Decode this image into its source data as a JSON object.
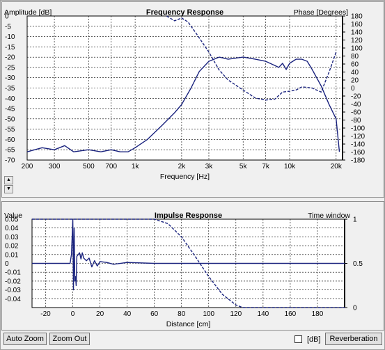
{
  "colors": {
    "trace": "#1a237e",
    "background": "#ffffff",
    "grid": "#000000"
  },
  "freq_chart": {
    "chart_data": {
      "type": "line",
      "title": "Frequency Response",
      "xlabel": "Frequency [Hz]",
      "ylabel_left": "Amplitude [dB]",
      "ylabel_right": "Phase [Degrees]",
      "x_scale": "log",
      "xlim": [
        200,
        22000
      ],
      "ylim": [
        -70,
        0
      ],
      "y2lim": [
        -180,
        180
      ],
      "x_ticks": [
        200,
        300,
        500,
        700,
        1000,
        2000,
        3000,
        5000,
        7000,
        10000,
        20000
      ],
      "x_tick_labels": [
        "200",
        "300",
        "500",
        "700",
        "1k",
        "2k",
        "3k",
        "5k",
        "7k",
        "10k",
        "20k"
      ],
      "y_ticks": [
        0,
        -5,
        -10,
        -15,
        -20,
        -25,
        -30,
        -35,
        -40,
        -45,
        -50,
        -55,
        -60,
        -65,
        -70
      ],
      "y_tick_labels": [
        "0",
        "-5",
        "-10",
        "-15",
        "-20",
        "-25",
        "-30",
        "-35",
        "-40",
        "-45",
        "-50",
        "-55",
        "-60",
        "-65",
        "-70"
      ],
      "y2_ticks": [
        180,
        160,
        140,
        120,
        100,
        80,
        60,
        40,
        20,
        0,
        -20,
        -40,
        -60,
        -80,
        -100,
        -120,
        -140,
        -160,
        -180
      ],
      "y2_tick_labels": [
        "180",
        "160",
        "140",
        "120",
        "100",
        "80",
        "60",
        "40",
        "20",
        "0",
        "-20",
        "-40",
        "-60",
        "-80",
        "-100",
        "-120",
        "-140",
        "-160",
        "-180"
      ],
      "grid": true,
      "series": [
        {
          "kind": "amplitude",
          "style": "solid",
          "axis": "left",
          "x": [
            200,
            250,
            300,
            350,
            400,
            500,
            600,
            700,
            800,
            900,
            1000,
            1200,
            1500,
            1800,
            2000,
            2300,
            2600,
            3000,
            3500,
            4000,
            5000,
            6000,
            7000,
            8000,
            8500,
            9000,
            9500,
            10000,
            11000,
            12000,
            13000,
            14000,
            16000,
            18000,
            20000,
            21000
          ],
          "y": [
            -66,
            -64,
            -65,
            -63,
            -66,
            -65,
            -66,
            -65,
            -66,
            -66,
            -64,
            -60,
            -53,
            -47,
            -43,
            -35,
            -27,
            -22,
            -20,
            -21,
            -20,
            -21,
            -22,
            -24,
            -25,
            -23,
            -26,
            -23,
            -21,
            -21,
            -22,
            -26,
            -34,
            -43,
            -50,
            -66
          ]
        },
        {
          "kind": "phase",
          "style": "dashed",
          "axis": "right",
          "x": [
            1600,
            1800,
            2000,
            2200,
            2500,
            3000,
            3500,
            4000,
            5000,
            6000,
            7000,
            8000,
            9000,
            10000,
            11000,
            12000,
            14000,
            16000,
            18000,
            20000
          ],
          "y": [
            180,
            168,
            175,
            165,
            135,
            90,
            45,
            20,
            -5,
            -25,
            -30,
            -28,
            -10,
            -8,
            -5,
            3,
            0,
            -10,
            40,
            90
          ]
        }
      ]
    }
  },
  "imp_chart": {
    "chart_data": {
      "type": "line",
      "title": "Impulse Response",
      "xlabel": "Distance [cm]",
      "ylabel_left": "Value",
      "ylabel_right": "Time window",
      "xlim": [
        -30,
        200
      ],
      "ylim": [
        -0.05,
        0.05
      ],
      "y2lim": [
        0,
        1
      ],
      "x_ticks": [
        -20,
        0,
        20,
        40,
        60,
        80,
        100,
        120,
        140,
        160,
        180
      ],
      "x_tick_labels": [
        "-20",
        "0",
        "20",
        "40",
        "60",
        "80",
        "100",
        "120",
        "140",
        "160",
        "180"
      ],
      "y_ticks": [
        0.05,
        0.04,
        0.03,
        0.02,
        0.01,
        0,
        -0.01,
        -0.02,
        -0.03,
        -0.04
      ],
      "y_tick_labels": [
        "0.05",
        "0.04",
        "0.03",
        "0.02",
        "0.01",
        "0",
        "-0.01",
        "-0.02",
        "-0.03",
        "-0.04"
      ],
      "y2_ticks": [
        1,
        0.5,
        0
      ],
      "y2_tick_labels": [
        "1",
        "0.5",
        "0"
      ],
      "grid": true,
      "series": [
        {
          "kind": "impulse",
          "style": "solid",
          "axis": "left",
          "x": [
            -30,
            -5,
            -2,
            -1,
            0,
            0.5,
            1,
            1.5,
            2,
            2.5,
            3,
            4,
            5,
            6,
            7,
            8,
            10,
            12,
            14,
            16,
            18,
            20,
            25,
            30,
            40,
            60,
            80,
            100,
            150,
            200
          ],
          "y": [
            0,
            0,
            0,
            0.01,
            0.05,
            -0.03,
            0.04,
            -0.02,
            -0.015,
            -0.025,
            0.008,
            0.01,
            0.012,
            0.005,
            0.012,
            0.006,
            0.003,
            0.006,
            -0.004,
            0.003,
            -0.003,
            0.002,
            0.001,
            -0.001,
            0.001,
            0,
            0,
            0,
            0,
            0
          ]
        },
        {
          "kind": "time-window",
          "style": "dashed",
          "axis": "right",
          "x": [
            -30,
            60,
            70,
            80,
            90,
            100,
            110,
            120,
            125,
            200
          ],
          "y": [
            1,
            1,
            0.95,
            0.8,
            0.58,
            0.35,
            0.15,
            0.03,
            0,
            0
          ]
        }
      ]
    }
  },
  "controls": {
    "auto_zoom": "Auto Zoom",
    "zoom_out": "Zoom Out",
    "db_label": "[dB]",
    "db_checked": false,
    "reverberation": "Reverberation",
    "spin_up": "▲",
    "spin_down": "▼"
  }
}
